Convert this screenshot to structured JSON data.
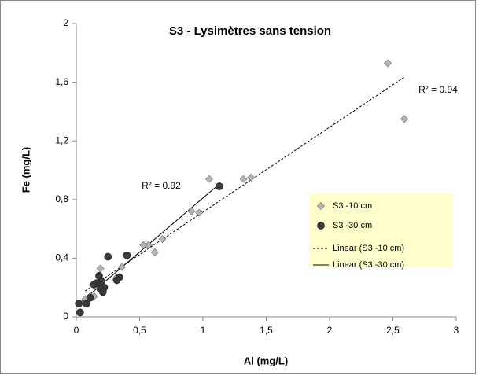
{
  "chart_data": {
    "type": "scatter",
    "title": "S3 - Lysimètres sans tension",
    "x_label": "Al (mg/L)",
    "y_label": "Fe (mg/L)",
    "xlim": [
      0,
      3
    ],
    "ylim": [
      0,
      2
    ],
    "xticks": [
      0,
      {
        "value": 0.5,
        "label": "0,5"
      },
      1,
      {
        "value": 1.5,
        "label": "1,5"
      },
      2,
      {
        "value": 2.5,
        "label": "2,5"
      },
      3
    ],
    "yticks": [
      0,
      {
        "value": 0.4,
        "label": "0,4"
      },
      {
        "value": 0.8,
        "label": "0,8"
      },
      {
        "value": 1.2,
        "label": "1,2"
      },
      {
        "value": 1.6,
        "label": "1,6"
      },
      2
    ],
    "series": [
      {
        "name": "S3 -10 cm",
        "marker": "diamond",
        "color": "#b4b4b4",
        "trendline": "linear",
        "trendline_name": "Linear (S3 -10 cm)",
        "trendline_style": "dashed",
        "x": [
          2.46,
          2.59,
          1.38,
          1.32,
          1.05,
          0.97,
          0.91,
          0.68,
          0.62,
          0.57,
          0.53,
          0.36,
          0.31,
          0.19,
          0.14,
          0.11,
          0.07,
          0.22
        ],
        "values": [
          1.73,
          1.35,
          0.95,
          0.94,
          0.94,
          0.71,
          0.72,
          0.53,
          0.44,
          0.49,
          0.49,
          0.34,
          0.26,
          0.33,
          0.14,
          0.14,
          0.12,
          0.2
        ]
      },
      {
        "name": "S3 -30 cm",
        "marker": "circle",
        "color": "#3a3a3a",
        "trendline": "linear",
        "trendline_name": "Linear (S3 -30 cm)",
        "trendline_style": "solid",
        "x": [
          1.13,
          0.4,
          0.25,
          0.34,
          0.32,
          0.18,
          0.2,
          0.16,
          0.22,
          0.19,
          0.21,
          0.11,
          0.08,
          0.02,
          0.03,
          0.14
        ],
        "values": [
          0.89,
          0.42,
          0.41,
          0.27,
          0.25,
          0.28,
          0.24,
          0.23,
          0.2,
          0.19,
          0.17,
          0.13,
          0.09,
          0.09,
          0.03,
          0.22
        ]
      }
    ],
    "annotations": [
      {
        "text": "R² = 0.92"
      },
      {
        "text": "R² = 0.94"
      }
    ],
    "legend_color": "#ffffcc"
  }
}
